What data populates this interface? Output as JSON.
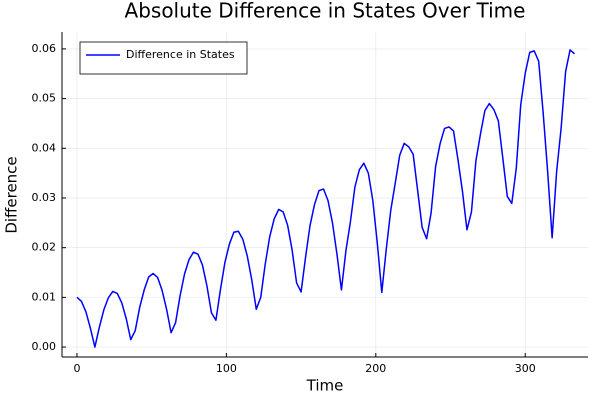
{
  "chart_data": {
    "type": "line",
    "title": "Absolute Difference in States Over Time",
    "x_label": "Time",
    "y_label": "Difference",
    "xlim": [
      -10,
      342
    ],
    "ylim": [
      -0.002,
      0.0634
    ],
    "xticks": [
      0,
      100,
      200,
      300
    ],
    "yticks": [
      {
        "value": 0,
        "label": "0.00"
      },
      {
        "value": 0.01,
        "label": "0.01"
      },
      {
        "value": 0.02,
        "label": "0.02"
      },
      {
        "value": 0.03,
        "label": "0.03"
      },
      {
        "value": 0.04,
        "label": "0.04"
      },
      {
        "value": 0.05,
        "label": "0.05"
      },
      {
        "value": 0.06,
        "label": "0.06"
      }
    ],
    "grid": true,
    "legend": "top-left",
    "x": [
      0,
      3,
      6,
      9,
      12,
      15,
      18,
      21,
      24,
      27,
      30,
      33,
      36,
      39,
      42,
      45,
      48,
      51,
      54,
      57,
      60,
      63,
      66,
      69,
      72,
      75,
      78,
      81,
      84,
      87,
      90,
      93,
      96,
      99,
      102,
      105,
      108,
      111,
      114,
      117,
      120,
      123,
      126,
      129,
      132,
      135,
      138,
      141,
      144,
      147,
      150,
      153,
      156,
      159,
      162,
      165,
      168,
      171,
      174,
      177,
      180,
      183,
      186,
      189,
      192,
      195,
      198,
      201,
      204,
      207,
      210,
      213,
      216,
      219,
      222,
      225,
      228,
      231,
      234,
      237,
      240,
      243,
      246,
      249,
      252,
      255,
      258,
      261,
      264,
      267,
      270,
      273,
      276,
      279,
      282,
      285,
      288,
      291,
      294,
      297,
      300,
      303,
      306,
      309,
      312,
      315,
      318,
      321,
      324,
      327,
      330,
      333
    ],
    "series": [
      {
        "name": "Difference in States",
        "color": "#0000ff",
        "values": [
          0.01,
          0.0092,
          0.0071,
          0.0038,
          0.0,
          0.004,
          0.0075,
          0.0099,
          0.0112,
          0.0108,
          0.0089,
          0.0057,
          0.0015,
          0.0033,
          0.008,
          0.0115,
          0.0141,
          0.0148,
          0.014,
          0.0114,
          0.0076,
          0.0029,
          0.0049,
          0.0103,
          0.0147,
          0.0176,
          0.0191,
          0.0187,
          0.0165,
          0.0123,
          0.0069,
          0.0054,
          0.0115,
          0.017,
          0.0207,
          0.0231,
          0.0233,
          0.0217,
          0.0183,
          0.0135,
          0.0076,
          0.01,
          0.0167,
          0.0222,
          0.0258,
          0.0277,
          0.0272,
          0.0245,
          0.0195,
          0.0129,
          0.0111,
          0.0181,
          0.0245,
          0.0287,
          0.0315,
          0.0318,
          0.0295,
          0.025,
          0.0187,
          0.0115,
          0.0194,
          0.0252,
          0.0322,
          0.0357,
          0.037,
          0.035,
          0.0295,
          0.0209,
          0.011,
          0.0197,
          0.0275,
          0.033,
          0.0386,
          0.041,
          0.0403,
          0.0388,
          0.0315,
          0.0241,
          0.0218,
          0.027,
          0.0363,
          0.0409,
          0.044,
          0.0443,
          0.0435,
          0.0377,
          0.0313,
          0.0236,
          0.0272,
          0.0375,
          0.0428,
          0.0476,
          0.049,
          0.0478,
          0.0455,
          0.038,
          0.0303,
          0.0289,
          0.036,
          0.0488,
          0.0551,
          0.0593,
          0.0596,
          0.0575,
          0.0471,
          0.0353,
          0.022,
          0.0353,
          0.044,
          0.0554,
          0.0598,
          0.059
        ]
      }
    ]
  }
}
